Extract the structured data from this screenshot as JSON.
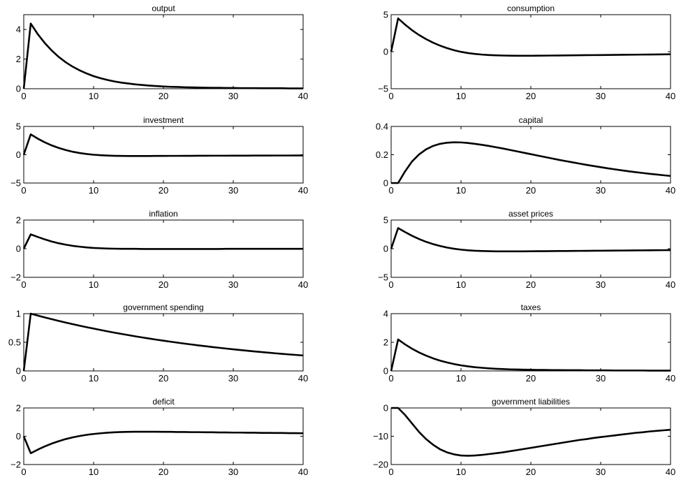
{
  "figure": {
    "line_color": "#000000",
    "background": "#ffffff"
  },
  "chart_data": [
    {
      "type": "line",
      "title": "output",
      "xlim": [
        0,
        40
      ],
      "ylim": [
        0,
        5
      ],
      "xticks": [
        0,
        10,
        20,
        30,
        40
      ],
      "yticks": [
        0,
        2,
        4
      ],
      "x": [
        0,
        1,
        2,
        3,
        4,
        5,
        6,
        7,
        8,
        9,
        10,
        11,
        12,
        13,
        14,
        15,
        16,
        17,
        18,
        19,
        20,
        21,
        22,
        23,
        24,
        25,
        26,
        27,
        28,
        29,
        30,
        31,
        32,
        33,
        34,
        35,
        36,
        37,
        38,
        39,
        40
      ],
      "series": [
        {
          "values": [
            0,
            4.4,
            3.69,
            3.09,
            2.58,
            2.15,
            1.79,
            1.49,
            1.24,
            1.03,
            0.85,
            0.71,
            0.59,
            0.49,
            0.41,
            0.35,
            0.29,
            0.25,
            0.21,
            0.18,
            0.15,
            0.13,
            0.12,
            0.1,
            0.09,
            0.08,
            0.07,
            0.06,
            0.06,
            0.05,
            0.05,
            0.04,
            0.04,
            0.04,
            0.03,
            0.03,
            0.03,
            0.03,
            0.02,
            0.02,
            0.02
          ]
        }
      ]
    },
    {
      "type": "line",
      "title": "consumption",
      "xlim": [
        0,
        40
      ],
      "ylim": [
        -5,
        5
      ],
      "xticks": [
        0,
        10,
        20,
        30,
        40
      ],
      "yticks": [
        -5,
        0,
        5
      ],
      "x": [
        0,
        1,
        2,
        3,
        4,
        5,
        6,
        7,
        8,
        9,
        10,
        11,
        12,
        13,
        14,
        15,
        16,
        17,
        18,
        19,
        20,
        21,
        22,
        23,
        24,
        25,
        26,
        27,
        28,
        29,
        30,
        31,
        32,
        33,
        34,
        35,
        36,
        37,
        38,
        39,
        40
      ],
      "series": [
        {
          "values": [
            0,
            4.5,
            3.65,
            2.9,
            2.25,
            1.7,
            1.22,
            0.82,
            0.48,
            0.2,
            -0.02,
            -0.18,
            -0.3,
            -0.39,
            -0.45,
            -0.49,
            -0.52,
            -0.54,
            -0.55,
            -0.55,
            -0.55,
            -0.54,
            -0.53,
            -0.52,
            -0.51,
            -0.5,
            -0.49,
            -0.48,
            -0.47,
            -0.46,
            -0.45,
            -0.44,
            -0.43,
            -0.42,
            -0.41,
            -0.4,
            -0.39,
            -0.38,
            -0.37,
            -0.36,
            -0.35
          ]
        }
      ]
    },
    {
      "type": "line",
      "title": "investment",
      "xlim": [
        0,
        40
      ],
      "ylim": [
        -5,
        5
      ],
      "xticks": [
        0,
        10,
        20,
        30,
        40
      ],
      "yticks": [
        -5,
        0,
        5
      ],
      "x": [
        0,
        1,
        2,
        3,
        4,
        5,
        6,
        7,
        8,
        9,
        10,
        11,
        12,
        13,
        14,
        15,
        16,
        17,
        18,
        19,
        20,
        21,
        22,
        23,
        24,
        25,
        26,
        27,
        28,
        29,
        30,
        31,
        32,
        33,
        34,
        35,
        36,
        37,
        38,
        39,
        40
      ],
      "series": [
        {
          "values": [
            0,
            3.6,
            2.85,
            2.2,
            1.65,
            1.2,
            0.83,
            0.53,
            0.3,
            0.13,
            0.0,
            -0.09,
            -0.15,
            -0.19,
            -0.21,
            -0.22,
            -0.22,
            -0.22,
            -0.22,
            -0.21,
            -0.21,
            -0.2,
            -0.2,
            -0.19,
            -0.19,
            -0.18,
            -0.18,
            -0.17,
            -0.17,
            -0.17,
            -0.16,
            -0.16,
            -0.16,
            -0.15,
            -0.15,
            -0.15,
            -0.14,
            -0.14,
            -0.14,
            -0.13,
            -0.13
          ]
        }
      ]
    },
    {
      "type": "line",
      "title": "capital",
      "xlim": [
        0,
        40
      ],
      "ylim": [
        0,
        0.4
      ],
      "xticks": [
        0,
        10,
        20,
        30,
        40
      ],
      "yticks": [
        0,
        0.2,
        0.4
      ],
      "x": [
        0,
        1,
        2,
        3,
        4,
        5,
        6,
        7,
        8,
        9,
        10,
        11,
        12,
        13,
        14,
        15,
        16,
        17,
        18,
        19,
        20,
        21,
        22,
        23,
        24,
        25,
        26,
        27,
        28,
        29,
        30,
        31,
        32,
        33,
        34,
        35,
        36,
        37,
        38,
        39,
        40
      ],
      "series": [
        {
          "values": [
            0,
            0,
            0.083,
            0.153,
            0.202,
            0.238,
            0.262,
            0.277,
            0.285,
            0.288,
            0.287,
            0.283,
            0.277,
            0.27,
            0.262,
            0.253,
            0.244,
            0.234,
            0.224,
            0.214,
            0.204,
            0.194,
            0.184,
            0.174,
            0.164,
            0.155,
            0.146,
            0.137,
            0.128,
            0.12,
            0.112,
            0.104,
            0.097,
            0.09,
            0.083,
            0.077,
            0.071,
            0.065,
            0.06,
            0.055,
            0.05
          ]
        }
      ]
    },
    {
      "type": "line",
      "title": "inflation",
      "xlim": [
        0,
        40
      ],
      "ylim": [
        -2,
        2
      ],
      "xticks": [
        0,
        10,
        20,
        30,
        40
      ],
      "yticks": [
        -2,
        0,
        2
      ],
      "x": [
        0,
        1,
        2,
        3,
        4,
        5,
        6,
        7,
        8,
        9,
        10,
        11,
        12,
        13,
        14,
        15,
        16,
        17,
        18,
        19,
        20,
        21,
        22,
        23,
        24,
        25,
        26,
        27,
        28,
        29,
        30,
        31,
        32,
        33,
        34,
        35,
        36,
        37,
        38,
        39,
        40
      ],
      "series": [
        {
          "values": [
            0,
            1.0,
            0.82,
            0.65,
            0.5,
            0.38,
            0.28,
            0.2,
            0.14,
            0.09,
            0.05,
            0.03,
            0.01,
            0.0,
            -0.01,
            -0.01,
            -0.01,
            -0.02,
            -0.02,
            -0.02,
            -0.02,
            -0.02,
            -0.02,
            -0.02,
            -0.02,
            -0.02,
            -0.02,
            -0.02,
            -0.02,
            -0.01,
            -0.01,
            -0.01,
            -0.01,
            -0.01,
            -0.01,
            -0.01,
            -0.01,
            -0.01,
            -0.01,
            -0.01,
            -0.01
          ]
        }
      ]
    },
    {
      "type": "line",
      "title": "asset prices",
      "xlim": [
        0,
        40
      ],
      "ylim": [
        -5,
        5
      ],
      "xticks": [
        0,
        10,
        20,
        30,
        40
      ],
      "yticks": [
        -5,
        0,
        5
      ],
      "x": [
        0,
        1,
        2,
        3,
        4,
        5,
        6,
        7,
        8,
        9,
        10,
        11,
        12,
        13,
        14,
        15,
        16,
        17,
        18,
        19,
        20,
        21,
        22,
        23,
        24,
        25,
        26,
        27,
        28,
        29,
        30,
        31,
        32,
        33,
        34,
        35,
        36,
        37,
        38,
        39,
        40
      ],
      "series": [
        {
          "values": [
            0,
            3.6,
            2.9,
            2.25,
            1.68,
            1.2,
            0.8,
            0.47,
            0.2,
            -0.01,
            -0.17,
            -0.28,
            -0.36,
            -0.41,
            -0.44,
            -0.46,
            -0.47,
            -0.47,
            -0.47,
            -0.46,
            -0.45,
            -0.44,
            -0.43,
            -0.42,
            -0.41,
            -0.4,
            -0.39,
            -0.38,
            -0.37,
            -0.36,
            -0.35,
            -0.34,
            -0.33,
            -0.32,
            -0.31,
            -0.3,
            -0.29,
            -0.28,
            -0.27,
            -0.26,
            -0.25
          ]
        }
      ]
    },
    {
      "type": "line",
      "title": "government spending",
      "xlim": [
        0,
        40
      ],
      "ylim": [
        0,
        1
      ],
      "xticks": [
        0,
        10,
        20,
        30,
        40
      ],
      "yticks": [
        0,
        0.5,
        1
      ],
      "x": [
        0,
        1,
        2,
        3,
        4,
        5,
        6,
        7,
        8,
        9,
        10,
        11,
        12,
        13,
        14,
        15,
        16,
        17,
        18,
        19,
        20,
        21,
        22,
        23,
        24,
        25,
        26,
        27,
        28,
        29,
        30,
        31,
        32,
        33,
        34,
        35,
        36,
        37,
        38,
        39,
        40
      ],
      "series": [
        {
          "values": [
            0,
            1.0,
            0.967,
            0.935,
            0.904,
            0.874,
            0.845,
            0.817,
            0.79,
            0.764,
            0.739,
            0.715,
            0.691,
            0.668,
            0.646,
            0.625,
            0.604,
            0.584,
            0.565,
            0.546,
            0.528,
            0.511,
            0.494,
            0.477,
            0.462,
            0.446,
            0.432,
            0.417,
            0.404,
            0.39,
            0.377,
            0.365,
            0.353,
            0.341,
            0.33,
            0.319,
            0.308,
            0.298,
            0.288,
            0.279,
            0.27
          ]
        }
      ]
    },
    {
      "type": "line",
      "title": "taxes",
      "xlim": [
        0,
        40
      ],
      "ylim": [
        0,
        4
      ],
      "xticks": [
        0,
        10,
        20,
        30,
        40
      ],
      "yticks": [
        0,
        2,
        4
      ],
      "x": [
        0,
        1,
        2,
        3,
        4,
        5,
        6,
        7,
        8,
        9,
        10,
        11,
        12,
        13,
        14,
        15,
        16,
        17,
        18,
        19,
        20,
        21,
        22,
        23,
        24,
        25,
        26,
        27,
        28,
        29,
        30,
        31,
        32,
        33,
        34,
        35,
        36,
        37,
        38,
        39,
        40
      ],
      "series": [
        {
          "values": [
            0,
            2.2,
            1.85,
            1.55,
            1.29,
            1.07,
            0.88,
            0.72,
            0.59,
            0.48,
            0.39,
            0.32,
            0.26,
            0.22,
            0.18,
            0.15,
            0.13,
            0.11,
            0.1,
            0.09,
            0.08,
            0.07,
            0.07,
            0.06,
            0.06,
            0.05,
            0.05,
            0.05,
            0.04,
            0.04,
            0.04,
            0.04,
            0.03,
            0.03,
            0.03,
            0.03,
            0.03,
            0.02,
            0.02,
            0.02,
            0.02
          ]
        }
      ]
    },
    {
      "type": "line",
      "title": "deficit",
      "xlim": [
        0,
        40
      ],
      "ylim": [
        -2,
        2
      ],
      "xticks": [
        0,
        10,
        20,
        30,
        40
      ],
      "yticks": [
        -2,
        0,
        2
      ],
      "x": [
        0,
        1,
        2,
        3,
        4,
        5,
        6,
        7,
        8,
        9,
        10,
        11,
        12,
        13,
        14,
        15,
        16,
        17,
        18,
        19,
        20,
        21,
        22,
        23,
        24,
        25,
        26,
        27,
        28,
        29,
        30,
        31,
        32,
        33,
        34,
        35,
        36,
        37,
        38,
        39,
        40
      ],
      "series": [
        {
          "values": [
            0,
            -1.2,
            -0.95,
            -0.72,
            -0.52,
            -0.35,
            -0.2,
            -0.08,
            0.02,
            0.1,
            0.16,
            0.21,
            0.25,
            0.28,
            0.3,
            0.31,
            0.32,
            0.32,
            0.32,
            0.32,
            0.31,
            0.31,
            0.3,
            0.3,
            0.29,
            0.29,
            0.28,
            0.28,
            0.27,
            0.27,
            0.26,
            0.26,
            0.25,
            0.25,
            0.24,
            0.24,
            0.23,
            0.23,
            0.22,
            0.22,
            0.21
          ]
        }
      ]
    },
    {
      "type": "line",
      "title": "government liabilities",
      "xlim": [
        0,
        40
      ],
      "ylim": [
        -20,
        0
      ],
      "xticks": [
        0,
        10,
        20,
        30,
        40
      ],
      "yticks": [
        -20,
        -10,
        0
      ],
      "x": [
        0,
        1,
        2,
        3,
        4,
        5,
        6,
        7,
        8,
        9,
        10,
        11,
        12,
        13,
        14,
        15,
        16,
        17,
        18,
        19,
        20,
        21,
        22,
        23,
        24,
        25,
        26,
        27,
        28,
        29,
        30,
        31,
        32,
        33,
        34,
        35,
        36,
        37,
        38,
        39,
        40
      ],
      "series": [
        {
          "values": [
            0,
            0,
            -2.5,
            -5.5,
            -8.5,
            -11.0,
            -13.0,
            -14.6,
            -15.7,
            -16.4,
            -16.8,
            -16.9,
            -16.8,
            -16.6,
            -16.3,
            -16.0,
            -15.7,
            -15.3,
            -14.9,
            -14.5,
            -14.1,
            -13.7,
            -13.3,
            -12.9,
            -12.5,
            -12.1,
            -11.7,
            -11.3,
            -11.0,
            -10.6,
            -10.3,
            -10.0,
            -9.7,
            -9.4,
            -9.1,
            -8.8,
            -8.6,
            -8.3,
            -8.1,
            -7.9,
            -7.7
          ]
        }
      ]
    }
  ]
}
